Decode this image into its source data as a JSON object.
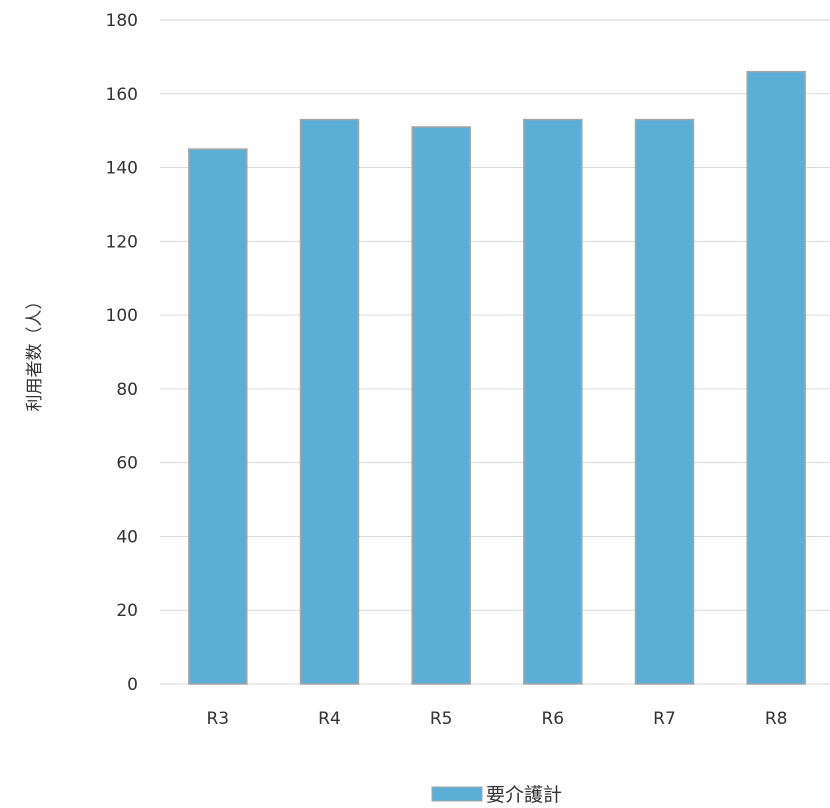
{
  "chart_data": {
    "type": "bar",
    "categories": [
      "R3",
      "R4",
      "R5",
      "R6",
      "R7",
      "R8"
    ],
    "series": [
      {
        "name": "要介護計",
        "values": [
          145,
          153,
          151,
          153,
          153,
          166
        ]
      }
    ],
    "ylabel": "利用者数（人）",
    "xlabel": "",
    "ylim": [
      0,
      180
    ],
    "yticks": [
      0,
      20,
      40,
      60,
      80,
      100,
      120,
      140,
      160,
      180
    ],
    "grid": true,
    "legend_position": "bottom",
    "colors": {
      "bar": "#5bafd6",
      "bar_border": "#a6a6a6",
      "grid": "#d9d9d9",
      "text": "#333333"
    }
  }
}
